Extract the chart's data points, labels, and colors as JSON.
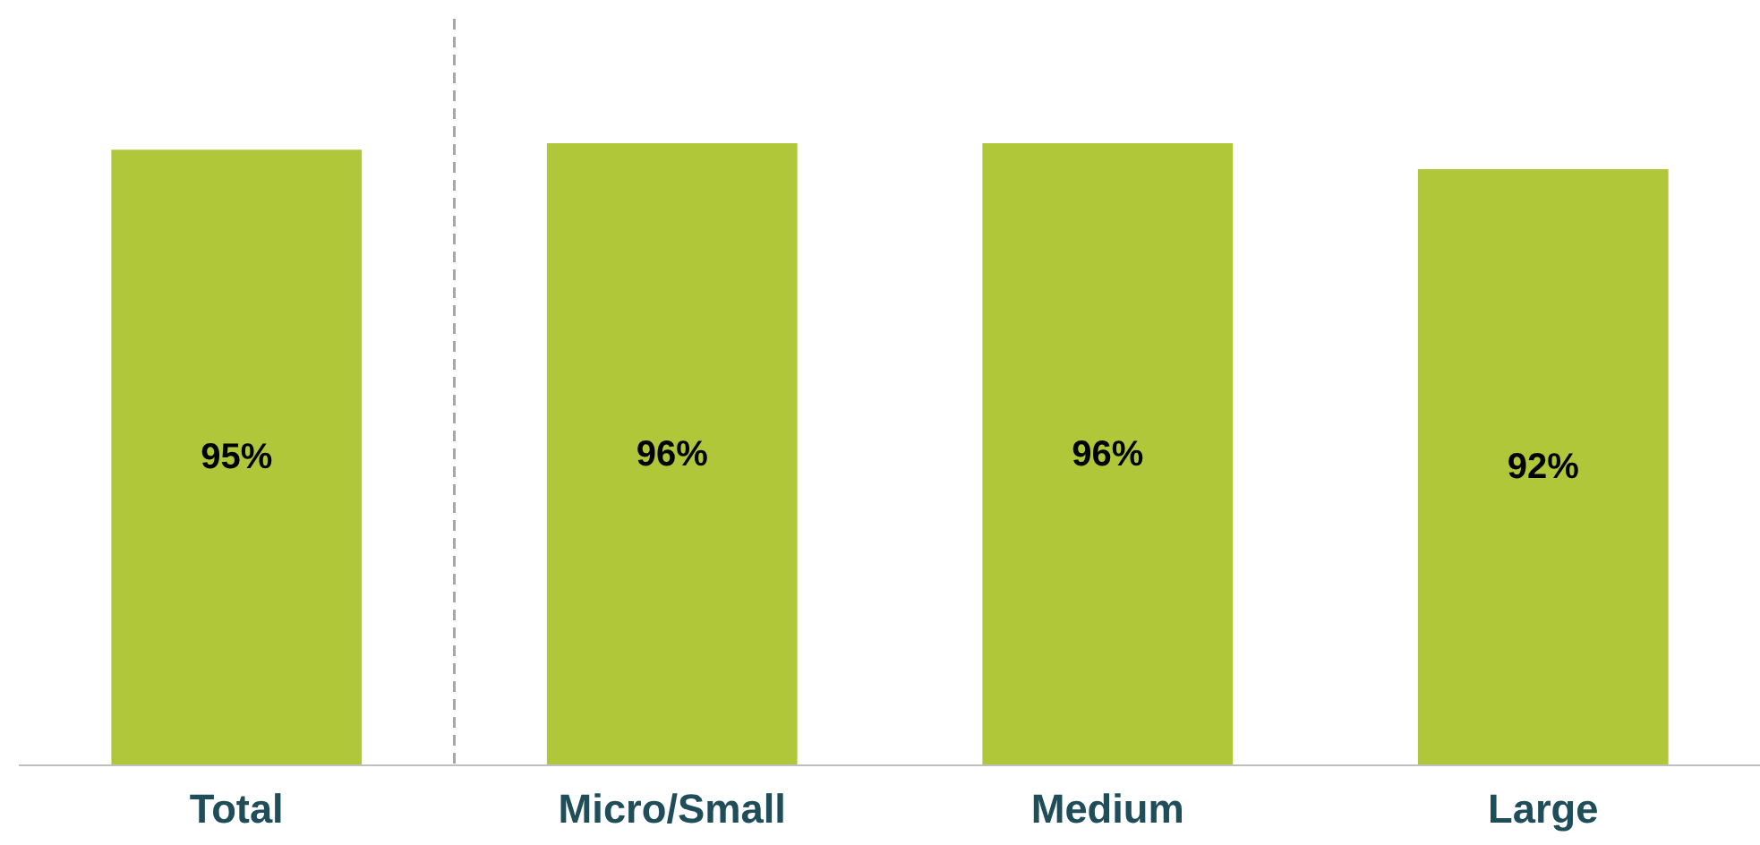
{
  "chart_data": {
    "type": "bar",
    "categories": [
      "Total",
      "Micro/Small",
      "Medium",
      "Large"
    ],
    "values": [
      95,
      96,
      96,
      92
    ],
    "color": "#b0c73a",
    "value_labels": [
      "95%",
      "96%",
      "96%",
      "92%"
    ],
    "tick_labels": "x"
  }
}
